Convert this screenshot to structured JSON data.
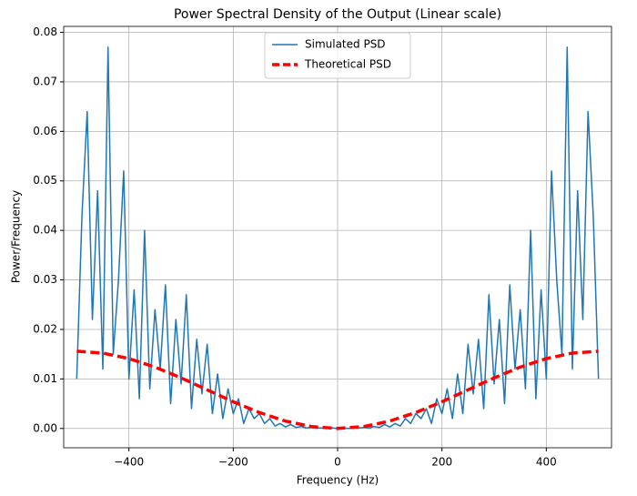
{
  "chart_data": {
    "type": "line",
    "title": "Power Spectral Density of the Output (Linear scale)",
    "xlabel": "Frequency (Hz)",
    "ylabel": "Power/Frequency",
    "xlim": [
      -525,
      525
    ],
    "ylim": [
      -0.0039,
      0.0812
    ],
    "xticks": [
      {
        "value": -400,
        "label": "−400"
      },
      {
        "value": -200,
        "label": "−200"
      },
      0,
      200,
      400
    ],
    "yticks": [
      {
        "value": 0,
        "label": "0.00"
      },
      {
        "value": 0.01,
        "label": "0.01"
      },
      {
        "value": 0.02,
        "label": "0.02"
      },
      {
        "value": 0.03,
        "label": "0.03"
      },
      {
        "value": 0.04,
        "label": "0.04"
      },
      {
        "value": 0.05,
        "label": "0.05"
      },
      {
        "value": 0.06,
        "label": "0.06"
      },
      {
        "value": 0.07,
        "label": "0.07"
      },
      {
        "value": 0.08,
        "label": "0.08"
      }
    ],
    "grid": true,
    "legend": "upper center",
    "series": [
      {
        "name": "Simulated PSD",
        "color": "#1f77b4",
        "width": 1.5,
        "dashed": false,
        "x": [
          -500,
          -490,
          -480,
          -470,
          -460,
          -450,
          -440,
          -430,
          -420,
          -410,
          -400,
          -390,
          -380,
          -370,
          -360,
          -350,
          -340,
          -330,
          -320,
          -310,
          -300,
          -290,
          -280,
          -270,
          -260,
          -250,
          -240,
          -230,
          -220,
          -210,
          -200,
          -190,
          -180,
          -170,
          -160,
          -150,
          -140,
          -130,
          -120,
          -110,
          -100,
          -90,
          -80,
          -70,
          -60,
          -50,
          -40,
          -30,
          -20,
          -10,
          0,
          10,
          20,
          30,
          40,
          50,
          60,
          70,
          80,
          90,
          100,
          110,
          120,
          130,
          140,
          150,
          160,
          170,
          180,
          190,
          200,
          210,
          220,
          230,
          240,
          250,
          260,
          270,
          280,
          290,
          300,
          310,
          320,
          330,
          340,
          350,
          360,
          370,
          380,
          390,
          400,
          410,
          420,
          430,
          440,
          450,
          460,
          470,
          480,
          490,
          500
        ],
        "values": [
          0.01,
          0.043,
          0.064,
          0.022,
          0.048,
          0.012,
          0.077,
          0.015,
          0.03,
          0.052,
          0.01,
          0.028,
          0.006,
          0.04,
          0.008,
          0.024,
          0.012,
          0.029,
          0.005,
          0.022,
          0.009,
          0.027,
          0.004,
          0.018,
          0.007,
          0.017,
          0.003,
          0.011,
          0.002,
          0.008,
          0.003,
          0.006,
          0.001,
          0.004,
          0.002,
          0.003,
          0.001,
          0.002,
          0.0005,
          0.001,
          0.0003,
          0.0008,
          0.0002,
          0.0004,
          0.0001,
          0.0002,
          0.0001,
          0.0001,
          0.0,
          0.0001,
          0.0,
          0.0001,
          0.0,
          0.0001,
          0.0001,
          0.0002,
          0.0001,
          0.0004,
          0.0002,
          0.0008,
          0.0003,
          0.001,
          0.0005,
          0.002,
          0.001,
          0.003,
          0.002,
          0.004,
          0.001,
          0.006,
          0.003,
          0.008,
          0.002,
          0.011,
          0.003,
          0.017,
          0.007,
          0.018,
          0.004,
          0.027,
          0.009,
          0.022,
          0.005,
          0.029,
          0.012,
          0.024,
          0.008,
          0.04,
          0.006,
          0.028,
          0.01,
          0.052,
          0.03,
          0.015,
          0.077,
          0.012,
          0.048,
          0.022,
          0.064,
          0.043,
          0.01
        ]
      },
      {
        "name": "Theoretical PSD",
        "color": "#ff0000",
        "width": 3.5,
        "dashed": true,
        "x": [
          -500,
          -450,
          -400,
          -350,
          -300,
          -250,
          -200,
          -150,
          -100,
          -50,
          0,
          50,
          100,
          150,
          200,
          250,
          300,
          350,
          400,
          450,
          500
        ],
        "values": [
          0.0156,
          0.01522,
          0.01411,
          0.01239,
          0.01021,
          0.0078,
          0.00539,
          0.00322,
          0.00149,
          0.00038,
          0.0,
          0.00038,
          0.00149,
          0.00322,
          0.00539,
          0.0078,
          0.01021,
          0.01239,
          0.01411,
          0.01522,
          0.0156
        ]
      }
    ]
  }
}
